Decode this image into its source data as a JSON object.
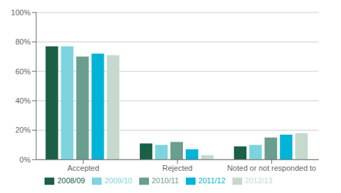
{
  "chart_data": {
    "type": "bar",
    "categories": [
      "Accepted",
      "Rejected",
      "Noted or not responded to"
    ],
    "series": [
      {
        "name": "2008/09",
        "color": "#1a6047",
        "values": [
          77,
          11,
          9
        ]
      },
      {
        "name": "2009/10",
        "color": "#7dd4df",
        "values": [
          77,
          10,
          10
        ]
      },
      {
        "name": "2010/11",
        "color": "#6a9e8e",
        "values": [
          70,
          12,
          15
        ]
      },
      {
        "name": "2011/12",
        "color": "#00b4d8",
        "values": [
          72,
          7,
          17
        ]
      },
      {
        "name": "2012/13",
        "color": "#c5d9cc",
        "values": [
          71,
          3,
          18
        ]
      }
    ],
    "ylim": [
      0,
      100
    ],
    "yticks": [
      {
        "value": 0,
        "label": "0%"
      },
      {
        "value": 20,
        "label": "20%"
      },
      {
        "value": 40,
        "label": "40%"
      },
      {
        "value": 60,
        "label": "60%"
      },
      {
        "value": 80,
        "label": "80%"
      },
      {
        "value": 100,
        "label": "100%"
      }
    ],
    "grid": true,
    "legend": "bottom"
  }
}
